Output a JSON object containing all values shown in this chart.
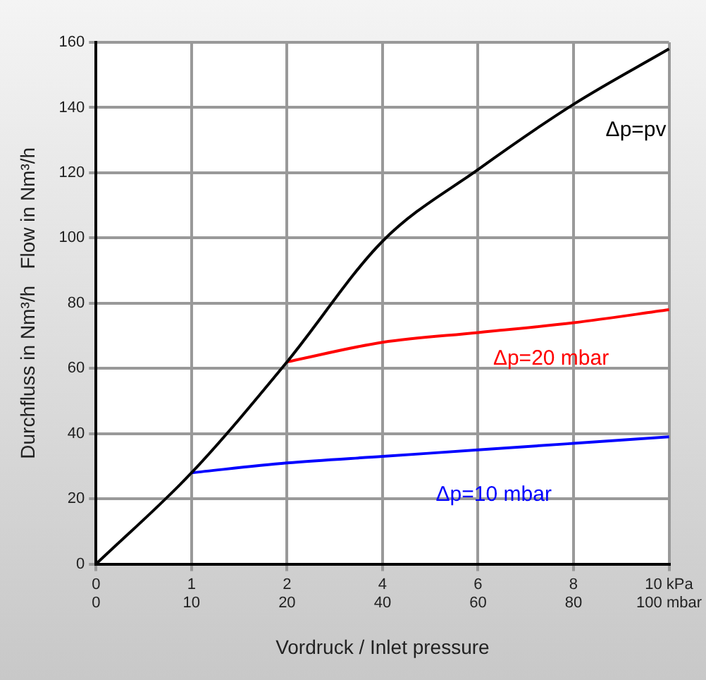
{
  "chart_data": {
    "type": "line",
    "xlabel": "Vordruck / Inlet pressure",
    "ylabel": "Durchfluss in Nm³/h   Flow in Nm³/h",
    "categories": [
      "0\n0",
      "1\n10",
      "2\n20",
      "4\n40",
      "6\n60",
      "8\n80",
      "10 kPa\n100 mbar"
    ],
    "series": [
      {
        "name": "Δp=pv",
        "color": "#000000",
        "values": [
          0,
          28,
          62,
          99,
          121,
          141,
          158
        ]
      },
      {
        "name": "Δp=20 mbar",
        "color": "#ff0000",
        "values": [
          null,
          null,
          62,
          68,
          71,
          74,
          78
        ]
      },
      {
        "name": "Δp=10 mbar",
        "color": "#0000ff",
        "values": [
          null,
          28,
          31,
          33,
          35,
          37,
          39
        ]
      }
    ],
    "ylim": [
      0,
      160
    ],
    "yticks": [
      0,
      20,
      40,
      60,
      80,
      100,
      120,
      140,
      160
    ],
    "grid": true,
    "legend": false,
    "marker": "none",
    "line_style": "solid"
  }
}
